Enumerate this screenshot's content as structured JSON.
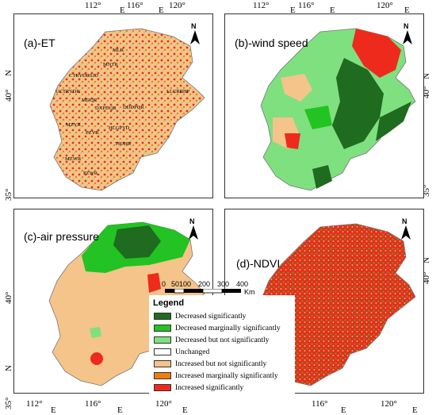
{
  "top_axis": [
    {
      "deg": "112°",
      "e": "E"
    },
    {
      "deg": "116°",
      "e": "E"
    },
    {
      "deg": "120°",
      "e": "E"
    }
  ],
  "top_axis_right": [
    {
      "deg": "112°",
      "e": "E"
    },
    {
      "deg": "116°",
      "e": "E"
    },
    {
      "deg": "120°",
      "e": "E"
    }
  ],
  "bottom_axis": [
    {
      "deg": "112°",
      "e": "E"
    },
    {
      "deg": "116°",
      "e": "E"
    },
    {
      "deg": "120°",
      "e": "E"
    }
  ],
  "bottom_axis_right": [
    {
      "deg": "116°",
      "e": "E"
    },
    {
      "deg": "120°",
      "e": "E"
    }
  ],
  "lat_labels": {
    "n40": "40°",
    "n35": "35°",
    "n": "N"
  },
  "panels": {
    "a": {
      "title": "(a)-ET"
    },
    "b": {
      "title": "(b)-wind speed"
    },
    "c": {
      "title": "(c)-air pressure"
    },
    "d": {
      "title": "(d)-NDVI"
    }
  },
  "north_letter": "N",
  "region_codes": [
    "MLR",
    "MNTR",
    "CTRYDRSJD",
    "UCTRYDR",
    "LLCRBHP",
    "MDQR",
    "DXPDQR",
    "DDDPQR",
    "MZYR",
    "PZYR",
    "HLGPYD",
    "THJHR",
    "MZWR",
    "PZWR",
    "DPBSR",
    "UCTRYDRJ"
  ],
  "scale_bar": {
    "ticks": [
      "0",
      "50",
      "100",
      "200",
      "300",
      "400"
    ],
    "unit": "Km"
  },
  "legend": {
    "title": "Legend",
    "items": [
      {
        "label": "Decreased significantly",
        "color": "#1f6b1f"
      },
      {
        "label": "Decreased marginally significantly",
        "color": "#22c322"
      },
      {
        "label": "Decreased but not significantly",
        "color": "#7fe07f"
      },
      {
        "label": "Unchanged",
        "color": "#ffffff"
      },
      {
        "label": "Increased but not significantly",
        "color": "#f5c48a"
      },
      {
        "label": "Increased marginally significantly",
        "color": "#ee7d12"
      },
      {
        "label": "Increased significantly",
        "color": "#ee2a1c"
      }
    ]
  }
}
